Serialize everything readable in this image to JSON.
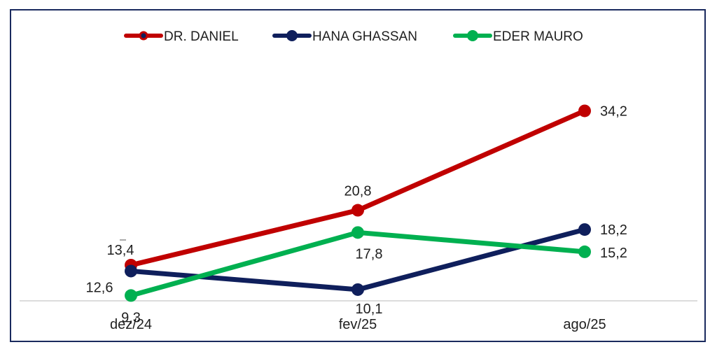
{
  "chart_data": {
    "type": "line",
    "categories": [
      "dez/24",
      "fev/25",
      "ago/25"
    ],
    "series": [
      {
        "name": "DR. DANIEL",
        "color": "#c00000",
        "values": [
          13.4,
          20.8,
          34.2
        ],
        "labels": [
          "13,4",
          "20,8",
          "34,2"
        ]
      },
      {
        "name": "HANA GHASSAN",
        "color": "#0f1f5c",
        "values": [
          12.6,
          10.1,
          18.2
        ],
        "labels": [
          "12,6",
          "10,1",
          "18,2"
        ]
      },
      {
        "name": "EDER MAURO",
        "color": "#00b050",
        "values": [
          9.3,
          17.8,
          15.2
        ],
        "labels": [
          "9,3",
          "17,8",
          "15,2"
        ]
      }
    ],
    "title": "",
    "xlabel": "",
    "ylabel": "",
    "legend_position": "top",
    "grid": false
  }
}
